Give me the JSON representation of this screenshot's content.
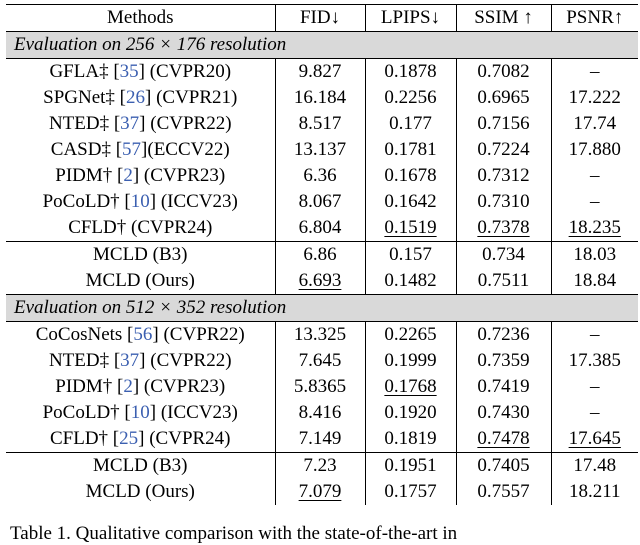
{
  "headers": [
    "Methods",
    "FID↓",
    "LPIPS↓",
    "SSIM ↑",
    "PSNR↑"
  ],
  "sections": [
    {
      "title": "Evaluation on 256 × 176 resolution",
      "rows": [
        {
          "pre": "GFLA‡ [",
          "cite": "35",
          "post": "] (CVPR20)",
          "vals": [
            "9.827",
            "0.1878",
            "0.7082",
            "–"
          ],
          "bold": [],
          "under": [],
          "group": "a"
        },
        {
          "pre": "SPGNet‡ [",
          "cite": "26",
          "post": "] (CVPR21)",
          "vals": [
            "16.184",
            "0.2256",
            "0.6965",
            "17.222"
          ],
          "bold": [],
          "under": [],
          "group": "a"
        },
        {
          "pre": "NTED‡ [",
          "cite": "37",
          "post": "] (CVPR22)",
          "vals": [
            "8.517",
            "0.177",
            "0.7156",
            "17.74"
          ],
          "bold": [],
          "under": [],
          "group": "a"
        },
        {
          "pre": "CASD‡ [",
          "cite": "57",
          "post": "](ECCV22)",
          "vals": [
            "13.137",
            "0.1781",
            "0.7224",
            "17.880"
          ],
          "bold": [],
          "under": [],
          "group": "a"
        },
        {
          "pre": "PIDM† [",
          "cite": "2",
          "post": "] (CVPR23)",
          "vals": [
            "6.36",
            "0.1678",
            "0.7312",
            "–"
          ],
          "bold": [
            0
          ],
          "under": [],
          "group": "a"
        },
        {
          "pre": "PoCoLD† [",
          "cite": "10",
          "post": "] (ICCV23)",
          "vals": [
            "8.067",
            "0.1642",
            "0.7310",
            "–"
          ],
          "bold": [],
          "under": [],
          "group": "a"
        },
        {
          "pre": "CFLD† (CVPR24)",
          "cite": "",
          "post": "",
          "vals": [
            "6.804",
            "0.1519",
            "0.7378",
            "18.235"
          ],
          "bold": [],
          "under": [
            1,
            2,
            3
          ],
          "group": "a"
        },
        {
          "pre": "MCLD (B3)",
          "cite": "",
          "post": "",
          "vals": [
            "6.86",
            "0.157",
            "0.734",
            "18.03"
          ],
          "bold": [],
          "under": [],
          "group": "b"
        },
        {
          "pre": "MCLD (Ours)",
          "cite": "",
          "post": "",
          "vals": [
            "6.693",
            "0.1482",
            "0.7511",
            "18.84"
          ],
          "bold": [
            1,
            2,
            3
          ],
          "under": [
            0
          ],
          "group": "b"
        }
      ]
    },
    {
      "title": "Evaluation on 512 × 352 resolution",
      "rows": [
        {
          "pre": "CoCosNets [",
          "cite": "56",
          "post": "] (CVPR22)",
          "vals": [
            "13.325",
            "0.2265",
            "0.7236",
            "–"
          ],
          "bold": [],
          "under": [],
          "group": "a"
        },
        {
          "pre": "NTED‡ [",
          "cite": "37",
          "post": "] (CVPR22)",
          "vals": [
            "7.645",
            "0.1999",
            "0.7359",
            "17.385"
          ],
          "bold": [],
          "under": [],
          "group": "a"
        },
        {
          "pre": "PIDM† [",
          "cite": "2",
          "post": "] (CVPR23)",
          "vals": [
            "5.8365",
            "0.1768",
            "0.7419",
            "–"
          ],
          "bold": [
            0
          ],
          "under": [
            1
          ],
          "group": "a"
        },
        {
          "pre": "PoCoLD† [",
          "cite": "10",
          "post": "] (ICCV23)",
          "vals": [
            "8.416",
            "0.1920",
            "0.7430",
            "–"
          ],
          "bold": [],
          "under": [],
          "group": "a"
        },
        {
          "pre": "CFLD† [",
          "cite": "25",
          "post": "] (CVPR24)",
          "vals": [
            "7.149",
            "0.1819",
            "0.7478",
            "17.645"
          ],
          "bold": [],
          "under": [
            2,
            3
          ],
          "group": "a"
        },
        {
          "pre": "MCLD (B3)",
          "cite": "",
          "post": "",
          "vals": [
            "7.23",
            "0.1951",
            "0.7405",
            "17.48"
          ],
          "bold": [],
          "under": [],
          "group": "b"
        },
        {
          "pre": "MCLD (Ours)",
          "cite": "",
          "post": "",
          "vals": [
            "7.079",
            "0.1757",
            "0.7557",
            "18.211"
          ],
          "bold": [
            1,
            2,
            3
          ],
          "under": [
            0
          ],
          "group": "b"
        }
      ]
    }
  ],
  "caption": "Table 1. Qualitative comparison with the state-of-the-art in"
}
